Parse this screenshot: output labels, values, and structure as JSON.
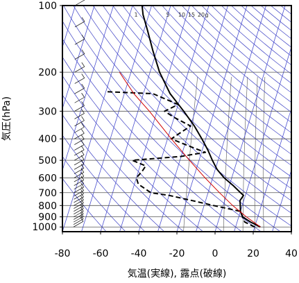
{
  "chart_data": {
    "type": "skew-t",
    "xlabel": "気温(実線), 露点(破線)",
    "ylabel": "気圧(hPa)",
    "xlim": [
      -80,
      40
    ],
    "ylim": [
      1050,
      100
    ],
    "y_scale": "log",
    "x_ticks": [
      "-80",
      "-60",
      "-40",
      "-20",
      "0",
      "20",
      "40"
    ],
    "y_ticks": [
      "100",
      "200",
      "300",
      "400",
      "500",
      "600",
      "700",
      "800",
      "900",
      "1000"
    ],
    "mixing_ratio_labels": [
      "1",
      "5",
      "10",
      "15",
      "20",
      "g"
    ],
    "grid": true,
    "series": [
      {
        "style": "solid",
        "color": "#000000",
        "points": [
          [
            1000,
            23
          ],
          [
            950,
            17
          ],
          [
            900,
            12
          ],
          [
            850,
            10
          ],
          [
            800,
            9
          ],
          [
            760,
            8
          ],
          [
            720,
            9
          ],
          [
            700,
            7
          ],
          [
            650,
            2
          ],
          [
            600,
            -4
          ],
          [
            550,
            -9
          ],
          [
            500,
            -13
          ],
          [
            450,
            -17
          ],
          [
            400,
            -22
          ],
          [
            350,
            -28
          ],
          [
            300,
            -36
          ],
          [
            250,
            -46
          ],
          [
            200,
            -55
          ],
          [
            160,
            -62
          ],
          [
            130,
            -68
          ],
          [
            110,
            -73
          ],
          [
            100,
            -75
          ]
        ]
      },
      {
        "style": "dashed",
        "color": "#000000",
        "points": [
          [
            1000,
            20
          ],
          [
            950,
            14
          ],
          [
            900,
            12
          ],
          [
            850,
            10
          ],
          [
            800,
            -5
          ],
          [
            760,
            -17
          ],
          [
            720,
            -30
          ],
          [
            700,
            -40
          ],
          [
            640,
            -48
          ],
          [
            600,
            -50
          ],
          [
            560,
            -48
          ],
          [
            530,
            -47
          ],
          [
            500,
            -55
          ],
          [
            480,
            -30
          ],
          [
            460,
            -18
          ],
          [
            430,
            -28
          ],
          [
            400,
            -38
          ],
          [
            380,
            -35
          ],
          [
            350,
            -30
          ],
          [
            320,
            -40
          ],
          [
            300,
            -46
          ],
          [
            280,
            -40
          ],
          [
            250,
            -55
          ],
          [
            245,
            -80
          ]
        ]
      },
      {
        "style": "solid",
        "color": "#d00000",
        "points": [
          [
            1000,
            23
          ],
          [
            900,
            14
          ],
          [
            800,
            5
          ],
          [
            700,
            -4
          ],
          [
            600,
            -14
          ],
          [
            500,
            -25
          ],
          [
            400,
            -38
          ],
          [
            300,
            -54
          ],
          [
            250,
            -65
          ],
          [
            200,
            -76
          ]
        ]
      }
    ],
    "wind_barbs": "left margin, 100–1000 hPa"
  }
}
